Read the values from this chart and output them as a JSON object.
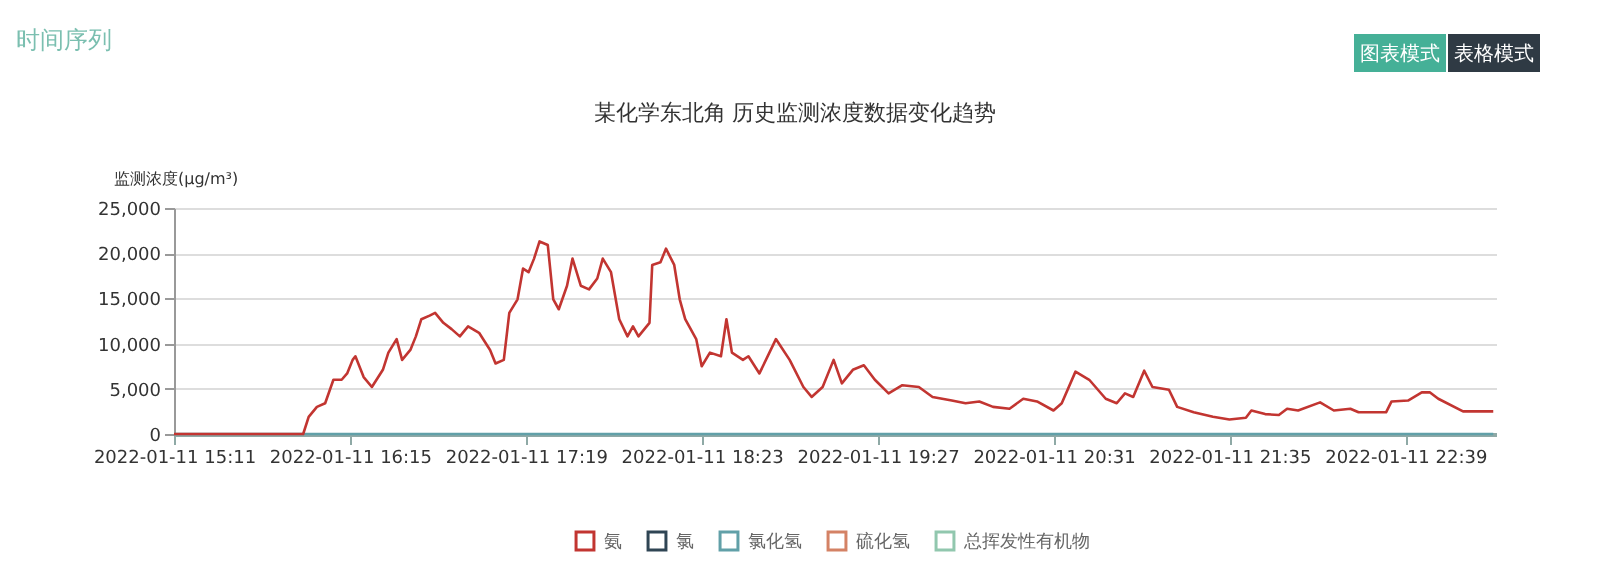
{
  "chart_data": {
    "type": "line",
    "title": "某化学东北角 历史监测浓度数据变化趋势",
    "ylabel": "监测浓度(μg/m³)",
    "annotations": [
      "时间序列",
      "图表模式",
      "表格模式"
    ],
    "series": [
      {
        "name": "氯",
        "color": "#2f4554"
      },
      {
        "name": "硫化氢",
        "color": "#d48265"
      },
      {
        "name": "总挥发性有机物",
        "color": "#91c7ae"
      },
      {
        "name": "氯化氢",
        "color": "#61a0a8",
        "x": [
          "2022-01-11T15:11",
          "2022-01-11T23:11"
        ],
        "values": [
          0,
          0
        ]
      },
      {
        "name": "氨",
        "color": "#c23531",
        "x": [
          "2022-01-11T15:11",
          "2022-01-11T15:58",
          "2022-01-11T16:00",
          "2022-01-11T16:03",
          "2022-01-11T16:06",
          "2022-01-11T16:09",
          "2022-01-11T16:12",
          "2022-01-11T16:14",
          "2022-01-11T16:16",
          "2022-01-11T16:17",
          "2022-01-11T16:20",
          "2022-01-11T16:23",
          "2022-01-11T16:27",
          "2022-01-11T16:29",
          "2022-01-11T16:32",
          "2022-01-11T16:34",
          "2022-01-11T16:37",
          "2022-01-11T16:39",
          "2022-01-11T16:41",
          "2022-01-11T16:44",
          "2022-01-11T16:46",
          "2022-01-11T16:49",
          "2022-01-11T16:52",
          "2022-01-11T16:55",
          "2022-01-11T16:58",
          "2022-01-11T17:02",
          "2022-01-11T17:06",
          "2022-01-11T17:08",
          "2022-01-11T17:11",
          "2022-01-11T17:13",
          "2022-01-11T17:16",
          "2022-01-11T17:18",
          "2022-01-11T17:20",
          "2022-01-11T17:22",
          "2022-01-11T17:24",
          "2022-01-11T17:27",
          "2022-01-11T17:29",
          "2022-01-11T17:31",
          "2022-01-11T17:34",
          "2022-01-11T17:36",
          "2022-01-11T17:39",
          "2022-01-11T17:42",
          "2022-01-11T17:45",
          "2022-01-11T17:47",
          "2022-01-11T17:50",
          "2022-01-11T17:53",
          "2022-01-11T17:56",
          "2022-01-11T17:58",
          "2022-01-11T18:00",
          "2022-01-11T18:04",
          "2022-01-11T18:05",
          "2022-01-11T18:08",
          "2022-01-11T18:10",
          "2022-01-11T18:13",
          "2022-01-11T18:15",
          "2022-01-11T18:17",
          "2022-01-11T18:21",
          "2022-01-11T18:23",
          "2022-01-11T18:26",
          "2022-01-11T18:30",
          "2022-01-11T18:32",
          "2022-01-11T18:34",
          "2022-01-11T18:38",
          "2022-01-11T18:40",
          "2022-01-11T18:44",
          "2022-01-11T18:50",
          "2022-01-11T18:55",
          "2022-01-11T19:00",
          "2022-01-11T19:03",
          "2022-01-11T19:07",
          "2022-01-11T19:11",
          "2022-01-11T19:14",
          "2022-01-11T19:18",
          "2022-01-11T19:22",
          "2022-01-11T19:26",
          "2022-01-11T19:31",
          "2022-01-11T19:36",
          "2022-01-11T19:42",
          "2022-01-11T19:47",
          "2022-01-11T19:54",
          "2022-01-11T19:59",
          "2022-01-11T20:04",
          "2022-01-11T20:09",
          "2022-01-11T20:15",
          "2022-01-11T20:20",
          "2022-01-11T20:25",
          "2022-01-11T20:31",
          "2022-01-11T20:34",
          "2022-01-11T20:39",
          "2022-01-11T20:44",
          "2022-01-11T20:50",
          "2022-01-11T20:54",
          "2022-01-11T20:57",
          "2022-01-11T21:00",
          "2022-01-11T21:04",
          "2022-01-11T21:07",
          "2022-01-11T21:13",
          "2022-01-11T21:16",
          "2022-01-11T21:22",
          "2022-01-11T21:29",
          "2022-01-11T21:35",
          "2022-01-11T21:41",
          "2022-01-11T21:43",
          "2022-01-11T21:48",
          "2022-01-11T21:53",
          "2022-01-11T21:56",
          "2022-01-11T22:00",
          "2022-01-11T22:08",
          "2022-01-11T22:13",
          "2022-01-11T22:19",
          "2022-01-11T22:22",
          "2022-01-11T22:32",
          "2022-01-11T22:34",
          "2022-01-11T22:40",
          "2022-01-11T22:45",
          "2022-01-11T22:48",
          "2022-01-11T22:51",
          "2022-01-11T23:00",
          "2022-01-11T23:05",
          "2022-01-11T23:11"
        ],
        "values": [
          0,
          0,
          1900,
          3000,
          3400,
          6000,
          6000,
          6700,
          8200,
          8600,
          6300,
          5200,
          7100,
          9000,
          10500,
          8200,
          9300,
          10800,
          12700,
          13100,
          13400,
          12300,
          11600,
          10800,
          11900,
          11200,
          9300,
          7800,
          8200,
          13400,
          14900,
          18300,
          17900,
          19400,
          21300,
          20900,
          14900,
          13800,
          16400,
          19400,
          16400,
          16000,
          17200,
          19400,
          17900,
          12700,
          10800,
          11900,
          10800,
          12300,
          18700,
          19000,
          20500,
          18700,
          14900,
          12700,
          10500,
          7500,
          9000,
          8600,
          12700,
          9000,
          8200,
          8600,
          6700,
          10500,
          8200,
          5200,
          4100,
          5200,
          8200,
          5600,
          7100,
          7600,
          6000,
          4500,
          5400,
          5200,
          4100,
          3700,
          3400,
          3600,
          3000,
          2800,
          3900,
          3600,
          2600,
          3400,
          6900,
          6000,
          3900,
          3400,
          4500,
          4100,
          7000,
          5200,
          4900,
          3000,
          2400,
          1900,
          1600,
          1800,
          2600,
          2200,
          2100,
          2800,
          2600,
          3500,
          2600,
          2800,
          2400,
          2400,
          3600,
          3700,
          4600,
          4600,
          3900,
          2500,
          2500,
          2500
        ]
      }
    ],
    "xlim": [
      "2022-01-11T15:11",
      "2022-01-11T23:12"
    ],
    "xticks": [
      {
        "value": "2022-01-11T15:11",
        "label": "2022-01-11 15:11"
      },
      {
        "value": "2022-01-11T16:15",
        "label": "2022-01-11 16:15"
      },
      {
        "value": "2022-01-11T17:19",
        "label": "2022-01-11 17:19"
      },
      {
        "value": "2022-01-11T18:23",
        "label": "2022-01-11 18:23"
      },
      {
        "value": "2022-01-11T19:27",
        "label": "2022-01-11 19:27"
      },
      {
        "value": "2022-01-11T20:31",
        "label": "2022-01-11 20:31"
      },
      {
        "value": "2022-01-11T21:35",
        "label": "2022-01-11 21:35"
      },
      {
        "value": "2022-01-11T22:39",
        "label": "2022-01-11 22:39"
      }
    ],
    "ylim": [
      0,
      25000
    ],
    "yticks": [
      0,
      {
        "value": 5000,
        "label": "5,000"
      },
      {
        "value": 10000,
        "label": "10,000"
      },
      {
        "value": 15000,
        "label": "15,000"
      },
      {
        "value": 20000,
        "label": "20,000"
      },
      {
        "value": 25000,
        "label": "25,000"
      }
    ],
    "grid": "y",
    "legend": "bottom",
    "marker": "none",
    "line_style": "solid"
  }
}
